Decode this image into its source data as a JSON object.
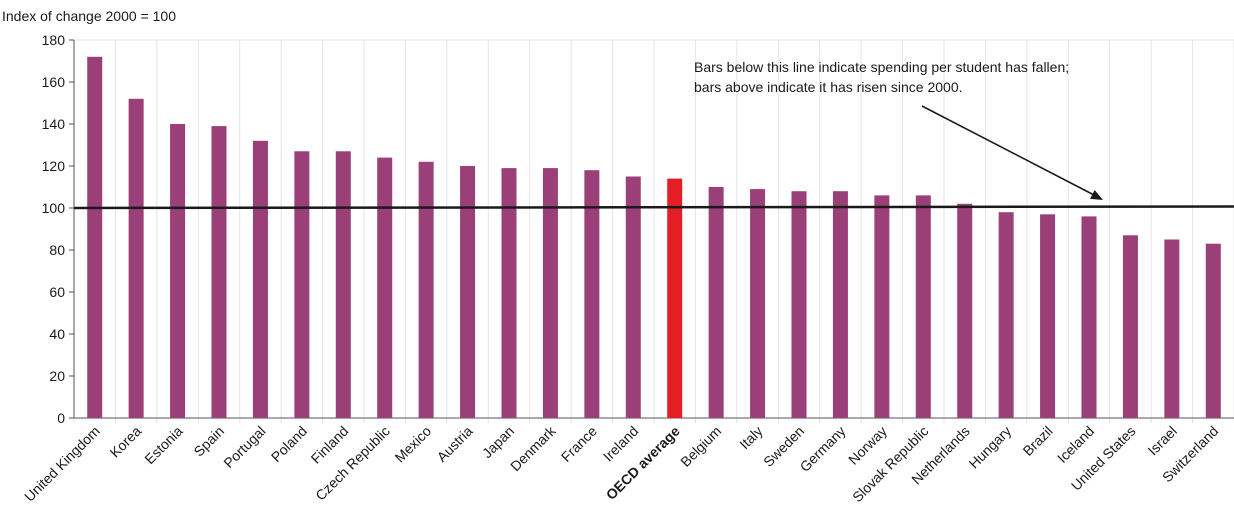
{
  "chart_data": {
    "type": "bar",
    "ylabel": "Index of change 2000 = 100",
    "ylim": [
      0,
      180
    ],
    "yticks": [
      0,
      20,
      40,
      60,
      80,
      100,
      120,
      140,
      160,
      180
    ],
    "grid": "vertical separators only",
    "reference_line": 100,
    "annotation": [
      "Bars below this line indicate spending per student has fallen;",
      "bars above indicate it has risen since 2000."
    ],
    "categories": [
      "United Kingdom",
      "Korea",
      "Estonia",
      "Spain",
      "Portugal",
      "Poland",
      "Finland",
      "Czech Republic",
      "Mexico",
      "Austria",
      "Japan",
      "Denmark",
      "France",
      "Ireland",
      "OECD average",
      "Belgium",
      "Italy",
      "Sweden",
      "Germany",
      "Norway",
      "Slovak Republic",
      "Netherlands",
      "Hungary",
      "Brazil",
      "Iceland",
      "United States",
      "Israel",
      "Switzerland"
    ],
    "values": [
      172,
      152,
      140,
      139,
      132,
      127,
      127,
      124,
      122,
      120,
      119,
      119,
      118,
      115,
      114,
      110,
      109,
      108,
      108,
      106,
      106,
      102,
      98,
      97,
      96,
      87,
      85,
      83
    ],
    "highlight": "OECD average",
    "colors": {
      "bar": "#9b3f78",
      "highlight": "#e31e24",
      "reference_line": "#1a1a1a"
    }
  }
}
